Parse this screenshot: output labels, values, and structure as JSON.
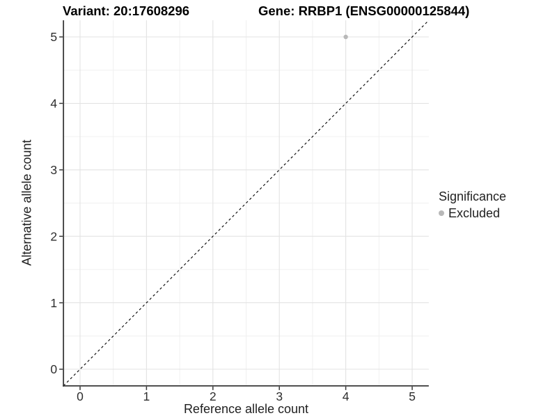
{
  "header": {
    "variant_title": "Variant: 20:17608296",
    "gene_title": "Gene: RRBP1 (ENSG00000125844)"
  },
  "axes": {
    "x_label": "Reference allele count",
    "y_label": "Alternative allele count"
  },
  "legend": {
    "title": "Significance",
    "items": [
      {
        "label": "Excluded",
        "color": "#b8b8b8"
      }
    ]
  },
  "chart_data": {
    "type": "scatter",
    "title_left": "Variant: 20:17608296",
    "title_right": "Gene: RRBP1 (ENSG00000125844)",
    "xlabel": "Reference allele count",
    "ylabel": "Alternative allele count",
    "xlim": [
      -0.25,
      5.25
    ],
    "ylim": [
      -0.25,
      5.25
    ],
    "xticks": [
      0,
      1,
      2,
      3,
      4,
      5
    ],
    "yticks": [
      0,
      1,
      2,
      3,
      4,
      5
    ],
    "x_minor": [
      0.5,
      1.5,
      2.5,
      3.5,
      4.5
    ],
    "y_minor": [
      0.5,
      1.5,
      2.5,
      3.5,
      4.5
    ],
    "grid": "major+minor",
    "legend_position": "right",
    "series": [
      {
        "name": "Excluded",
        "color": "#b8b8b8",
        "points": [
          {
            "x": 4,
            "y": 5
          }
        ]
      }
    ],
    "annotations": [
      {
        "type": "reference-line",
        "equation": "y = x",
        "style": "dashed",
        "color": "#000000",
        "from": [
          -0.25,
          -0.25
        ],
        "to": [
          5.25,
          5.25
        ]
      }
    ],
    "colors": {
      "grid_major": "#e3e3e3",
      "grid_minor": "#f0f0f0",
      "axis_line": "#383838",
      "tick_text": "#2e2e2e",
      "point": "#b8b8b8"
    }
  }
}
